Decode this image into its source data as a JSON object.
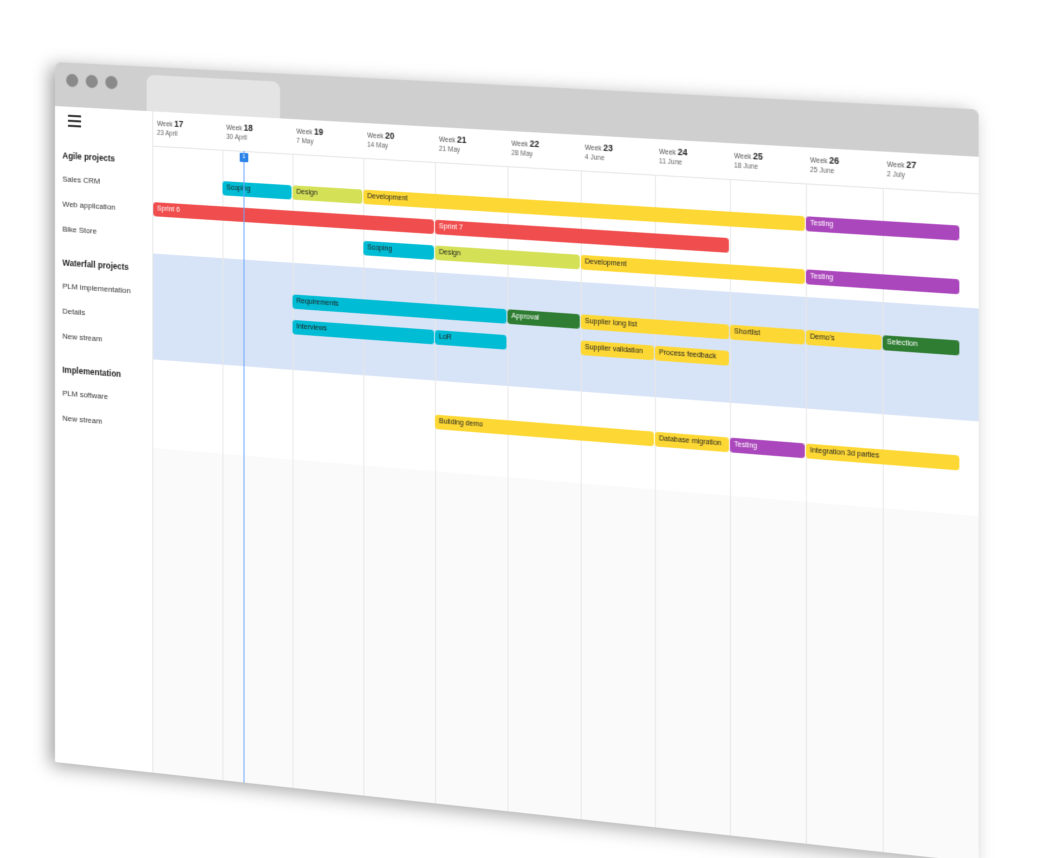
{
  "colors": {
    "red": "#f04e4e",
    "cyan": "#00bcd4",
    "lime": "#d4e157",
    "yellow": "#fdd835",
    "purple": "#ab47bc",
    "green": "#2e7d32",
    "band": "#d7e3f6",
    "today": "#2c83e8"
  },
  "menu_icon": "hamburger-menu-icon",
  "weeks": [
    {
      "prefix": "Week",
      "num": "17",
      "date": "23 April"
    },
    {
      "prefix": "Week",
      "num": "18",
      "date": "30 April"
    },
    {
      "prefix": "Week",
      "num": "19",
      "date": "7 May"
    },
    {
      "prefix": "Week",
      "num": "20",
      "date": "14 May"
    },
    {
      "prefix": "Week",
      "num": "21",
      "date": "21 May"
    },
    {
      "prefix": "Week",
      "num": "22",
      "date": "28 May"
    },
    {
      "prefix": "Week",
      "num": "23",
      "date": "4 June"
    },
    {
      "prefix": "Week",
      "num": "24",
      "date": "11 June"
    },
    {
      "prefix": "Week",
      "num": "25",
      "date": "18 June"
    },
    {
      "prefix": "Week",
      "num": "26",
      "date": "25 June"
    },
    {
      "prefix": "Week",
      "num": "27",
      "date": "2 July"
    }
  ],
  "today": {
    "label": "1",
    "week_index": 1,
    "fraction": 0.3
  },
  "groups": [
    {
      "name": "Agile projects",
      "highlight": false,
      "rows": [
        {
          "name": "Sales CRM",
          "bars": [
            {
              "label": "Scoping",
              "start": 1.0,
              "end": 2.0,
              "color": "cyan",
              "text": "light"
            },
            {
              "label": "Design",
              "start": 2.0,
              "end": 3.0,
              "color": "lime",
              "text": "light"
            },
            {
              "label": "Development",
              "start": 3.0,
              "end": 9.0,
              "color": "yellow",
              "text": "light"
            },
            {
              "label": "Testing",
              "start": 9.0,
              "end": 11.0,
              "color": "purple",
              "text": "dark"
            }
          ]
        },
        {
          "name": "Web application",
          "bars": [
            {
              "label": "Sprint 6",
              "start": 0.0,
              "end": 4.0,
              "color": "red",
              "text": "dark"
            },
            {
              "label": "Sprint 7",
              "start": 4.0,
              "end": 8.0,
              "color": "red",
              "text": "dark"
            }
          ]
        },
        {
          "name": "Bike Store",
          "bars": [
            {
              "label": "Scoping",
              "start": 3.0,
              "end": 4.0,
              "color": "cyan",
              "text": "light"
            },
            {
              "label": "Design",
              "start": 4.0,
              "end": 6.0,
              "color": "lime",
              "text": "light"
            },
            {
              "label": "Development",
              "start": 6.0,
              "end": 9.0,
              "color": "yellow",
              "text": "light"
            },
            {
              "label": "Testing",
              "start": 9.0,
              "end": 11.0,
              "color": "purple",
              "text": "dark"
            }
          ]
        }
      ]
    },
    {
      "name": "Waterfall projects",
      "highlight": true,
      "rows": [
        {
          "name": "PLM implementation",
          "bars": [
            {
              "label": "Requirements",
              "start": 2.0,
              "end": 5.0,
              "color": "cyan",
              "text": "light"
            },
            {
              "label": "Approval",
              "start": 5.0,
              "end": 6.0,
              "color": "green",
              "text": "dark"
            },
            {
              "label": "Supplier long list",
              "start": 6.0,
              "end": 8.0,
              "color": "yellow",
              "text": "light"
            },
            {
              "label": "Shortlist",
              "start": 8.0,
              "end": 9.0,
              "color": "yellow",
              "text": "light"
            },
            {
              "label": "Demo's",
              "start": 9.0,
              "end": 10.0,
              "color": "yellow",
              "text": "light"
            },
            {
              "label": "Selection",
              "start": 10.0,
              "end": 11.0,
              "color": "green",
              "text": "dark"
            }
          ]
        },
        {
          "name": "Details",
          "bars": [
            {
              "label": "Interviews",
              "start": 2.0,
              "end": 4.0,
              "color": "cyan",
              "text": "light"
            },
            {
              "label": "LoR",
              "start": 4.0,
              "end": 5.0,
              "color": "cyan",
              "text": "light"
            },
            {
              "label": "Supplier validation",
              "start": 6.0,
              "end": 7.0,
              "color": "yellow",
              "text": "light"
            },
            {
              "label": "Process feedback",
              "start": 7.0,
              "end": 8.0,
              "color": "yellow",
              "text": "light"
            }
          ]
        },
        {
          "name": "New stream",
          "bars": []
        }
      ]
    },
    {
      "name": "Implementation",
      "highlight": false,
      "rows": [
        {
          "name": "PLM software",
          "bars": [
            {
              "label": "Building demo",
              "start": 4.0,
              "end": 7.0,
              "color": "yellow",
              "text": "light"
            },
            {
              "label": "Database migration",
              "start": 7.0,
              "end": 8.0,
              "color": "yellow",
              "text": "light"
            },
            {
              "label": "Testing",
              "start": 8.0,
              "end": 9.0,
              "color": "purple",
              "text": "dark"
            },
            {
              "label": "Integration 3d parties",
              "start": 9.0,
              "end": 11.0,
              "color": "yellow",
              "text": "light"
            }
          ]
        },
        {
          "name": "New stream",
          "bars": []
        }
      ]
    }
  ]
}
